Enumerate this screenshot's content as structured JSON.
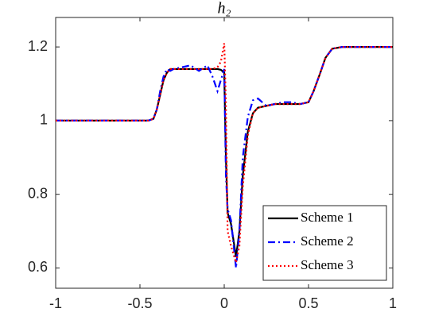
{
  "chart_data": {
    "type": "line",
    "title": "h₂",
    "x": [
      -1,
      -0.45,
      -0.42,
      -0.4,
      -0.38,
      -0.36,
      -0.34,
      -0.32,
      -0.3,
      -0.25,
      -0.2,
      -0.15,
      -0.1,
      -0.07,
      -0.04,
      -0.02,
      0,
      0.01,
      0.02,
      0.04,
      0.07,
      0.09,
      0.11,
      0.14,
      0.17,
      0.2,
      0.25,
      0.3,
      0.35,
      0.4,
      0.45,
      0.5,
      0.53,
      0.57,
      0.6,
      0.64,
      0.7,
      1
    ],
    "series": [
      {
        "name": "Scheme 1",
        "color": "#000000",
        "dash": "solid",
        "values": [
          1,
          1,
          1.005,
          1.03,
          1.07,
          1.11,
          1.13,
          1.14,
          1.14,
          1.14,
          1.14,
          1.14,
          1.14,
          1.14,
          1.14,
          1.138,
          1.13,
          0.9,
          0.75,
          0.72,
          0.63,
          0.7,
          0.85,
          0.97,
          1.02,
          1.035,
          1.04,
          1.045,
          1.045,
          1.045,
          1.045,
          1.05,
          1.08,
          1.13,
          1.17,
          1.195,
          1.2,
          1.2
        ]
      },
      {
        "name": "Scheme 2",
        "color": "#0000ff",
        "dash": "dashdot",
        "values": [
          1,
          1,
          1.005,
          1.03,
          1.08,
          1.12,
          1.14,
          1.135,
          1.14,
          1.145,
          1.15,
          1.135,
          1.15,
          1.12,
          1.08,
          1.11,
          1.14,
          0.85,
          0.76,
          0.73,
          0.6,
          0.7,
          0.9,
          1.01,
          1.055,
          1.06,
          1.04,
          1.045,
          1.05,
          1.05,
          1.045,
          1.05,
          1.08,
          1.13,
          1.17,
          1.195,
          1.2,
          1.2
        ]
      },
      {
        "name": "Scheme 3",
        "color": "#ff0000",
        "dash": "dotted",
        "values": [
          1,
          1,
          1.005,
          1.03,
          1.07,
          1.11,
          1.13,
          1.14,
          1.14,
          1.14,
          1.14,
          1.14,
          1.14,
          1.14,
          1.145,
          1.16,
          1.21,
          1.05,
          0.7,
          0.66,
          0.615,
          0.66,
          0.82,
          0.96,
          1.02,
          1.035,
          1.04,
          1.045,
          1.045,
          1.045,
          1.045,
          1.05,
          1.08,
          1.13,
          1.17,
          1.195,
          1.2,
          1.2
        ]
      }
    ],
    "xlim": [
      -1,
      1
    ],
    "xticks": [
      -1,
      -0.5,
      0,
      0.5,
      1
    ],
    "ylim": [
      0.545,
      1.28
    ],
    "yticks": [
      0.6,
      0.8,
      1,
      1.2
    ],
    "grid": false,
    "legend_position": "lower-right"
  }
}
